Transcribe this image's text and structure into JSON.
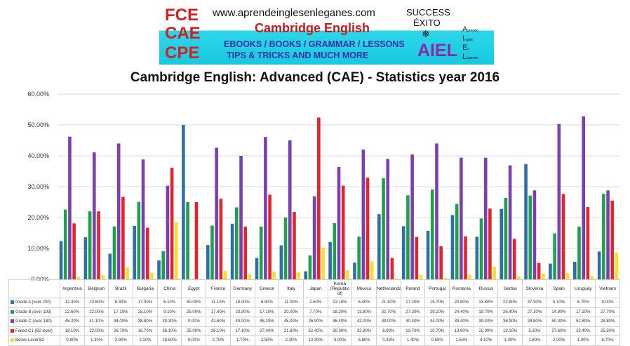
{
  "banner": {
    "exams": [
      "FCE",
      "CAE",
      "CPE"
    ],
    "url": "www.aprendeinglesenleganes.com",
    "brand": "Cambridge English",
    "line1": "EBOOKS / BOOKS / GRAMMAR / LESSONS",
    "line2": "TIPS & TRICKS AND MUCH MORE",
    "success": "SUCCESS",
    "exito": "ÉXITO",
    "aiel": "AIEL",
    "acronym": [
      {
        "letter": "A",
        "word": "prendo"
      },
      {
        "letter": "I",
        "word": "nglés"
      },
      {
        "letter": "E",
        "word": "n"
      },
      {
        "letter": "L",
        "word": "eganés"
      }
    ]
  },
  "chart_data": {
    "type": "bar",
    "title": "Cambridge English: Advanced (CAE) - Statistics year 2016",
    "ylim": [
      0,
      60
    ],
    "yticks": [
      "0.00%",
      "10.00%",
      "20.00%",
      "30.00%",
      "40.00%",
      "50.00%",
      "60.00%"
    ],
    "grid": true,
    "legend": "table-below",
    "categories": [
      "Argentina",
      "Belgium",
      "Brazil",
      "Bulgaria",
      "China",
      "Egypt",
      "France",
      "Germany",
      "Greece",
      "Italy",
      "Japan",
      "Korea (Republic of)",
      "Mexico",
      "Netherlands",
      "Poland",
      "Portugal",
      "Romania",
      "Russia",
      "Serbia",
      "Slovenia",
      "Spain",
      "Uruguay",
      "Vietnam"
    ],
    "series": [
      {
        "name": "Grade A (over 200)",
        "color": "#2e6fa8",
        "values": [
          12.4,
          13.6,
          8.3,
          17.3,
          6.1,
          50.0,
          11.1,
          18.0,
          6.9,
          11.0,
          2.6,
          12.1,
          5.4,
          21.1,
          17.2,
          15.7,
          20.8,
          13.8,
          22.8,
          37.3,
          5.1,
          5.7,
          9.0
        ],
        "labels": [
          "12.40%",
          "13.60%",
          "8.30%",
          "17.30%",
          "6.10%",
          "50.00%",
          "11.10%",
          "18.00%",
          "6.90%",
          "11.00%",
          "2.60%",
          "12.10%",
          "5.40%",
          "21.10%",
          "17.20%",
          "15.70%",
          "20.80%",
          "13.80%",
          "22.80%",
          "37.30%",
          "5.10%",
          "5.70%",
          "9.00%"
        ]
      },
      {
        "name": "Grade B (over 193)",
        "color": "#1fa04a",
        "values": [
          22.6,
          22.0,
          17.1,
          25.1,
          9.1,
          25.0,
          17.4,
          23.3,
          17.1,
          20.0,
          7.7,
          18.2,
          13.8,
          32.7,
          27.2,
          29.1,
          24.4,
          19.7,
          26.4,
          27.1,
          14.9,
          17.1,
          27.7
        ],
        "labels": [
          "22.60%",
          "22.00%",
          "17.10%",
          "25.10%",
          "9.10%",
          "25.00%",
          "17.40%",
          "23.30%",
          "17.10%",
          "20.00%",
          "7.70%",
          "18.20%",
          "13.80%",
          "32.70%",
          "27.20%",
          "29.10%",
          "24.40%",
          "19.70%",
          "26.40%",
          "27.10%",
          "14.90%",
          "17.10%",
          "27.70%"
        ]
      },
      {
        "name": "Grade C (over 180)",
        "color": "#7b3fb0",
        "values": [
          46.2,
          41.1,
          44.0,
          38.8,
          30.3,
          0.0,
          42.6,
          40.0,
          46.1,
          45.0,
          26.9,
          36.4,
          42.0,
          39.0,
          40.4,
          44.0,
          39.4,
          39.4,
          36.9,
          28.8,
          50.3,
          52.8,
          28.8
        ],
        "labels": [
          "46.20%",
          "41.10%",
          "44.00%",
          "38.80%",
          "30.30%",
          "0.00%",
          "42.60%",
          "40.00%",
          "46.10%",
          "45.00%",
          "26.90%",
          "36.40%",
          "42.00%",
          "39.00%",
          "40.40%",
          "44.00%",
          "39.40%",
          "39.40%",
          "36.90%",
          "28.80%",
          "50.30%",
          "52.80%",
          "28.80%"
        ]
      },
      {
        "name": "Failed C1 (B2 level)",
        "color": "#e8232a",
        "values": [
          18.1,
          22.0,
          26.7,
          16.7,
          36.1,
          25.0,
          26.1,
          17.1,
          27.4,
          21.8,
          52.4,
          30.3,
          32.9,
          6.9,
          13.7,
          10.7,
          13.9,
          22.9,
          13.1,
          5.3,
          27.6,
          23.4,
          25.5
        ],
        "labels": [
          "18.10%",
          "22.00%",
          "26.70%",
          "16.70%",
          "36.10%",
          "25.00%",
          "26.10%",
          "17.10%",
          "27.40%",
          "21.80%",
          "52.40%",
          "30.30%",
          "32.90%",
          "6.90%",
          "13.70%",
          "10.70%",
          "13.90%",
          "22.90%",
          "13.10%",
          "5.30%",
          "27.60%",
          "23.40%",
          "25.50%"
        ]
      },
      {
        "name": "Below Level B2",
        "color": "#f3e12a",
        "values": [
          0.8,
          1.3,
          3.9,
          2.1,
          18.5,
          0.0,
          2.7,
          1.7,
          2.5,
          2.3,
          10.3,
          3.0,
          5.8,
          0.3,
          1.4,
          0.5,
          1.5,
          4.1,
          1.0,
          1.8,
          2.0,
          1.0,
          8.7
        ],
        "labels": [
          "0.80%",
          "1.30%",
          "3.90%",
          "2.10%",
          "18.50%",
          "0.00%",
          "2.70%",
          "1.70%",
          "2.50%",
          "2.30%",
          "10.30%",
          "3.00%",
          "5.80%",
          "0.30%",
          "1.40%",
          "0.50%",
          "1.50%",
          "4.10%",
          "1.00%",
          "1.80%",
          "2.00%",
          "1.00%",
          "8.70%"
        ]
      }
    ]
  }
}
